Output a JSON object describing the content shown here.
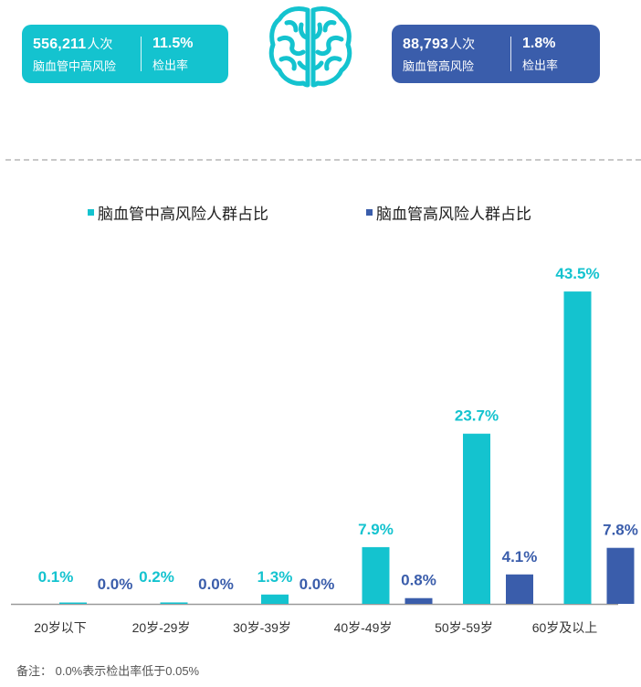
{
  "cards": {
    "left": {
      "count": "556,211",
      "unit": "人次",
      "label": "脑血管中高风险",
      "rate": "11.5%",
      "rate_label": "检出率",
      "color": "#14c3cf"
    },
    "right": {
      "count": "88,793",
      "unit": "人次",
      "label": "脑血管高风险",
      "rate": "1.8%",
      "rate_label": "检出率",
      "color": "#3a5dab"
    }
  },
  "icons": {
    "center": "brain-icon"
  },
  "footnote": "备注： 0.0%表示检出率低于0.05%",
  "chart_data": {
    "type": "bar",
    "categories": [
      "20岁以下",
      "20岁-29岁",
      "30岁-39岁",
      "40岁-49岁",
      "50岁-59岁",
      "60岁及以上"
    ],
    "series": [
      {
        "name": "脑血管中高风险人群占比",
        "color": "#14c3cf",
        "values": [
          0.1,
          0.2,
          1.3,
          7.9,
          23.7,
          43.5
        ],
        "labels": [
          "0.1%",
          "0.2%",
          "1.3%",
          "7.9%",
          "23.7%",
          "43.5%"
        ]
      },
      {
        "name": "脑血管高风险人群占比",
        "color": "#3a5dab",
        "values": [
          0.0,
          0.0,
          0.0,
          0.8,
          4.1,
          7.8
        ],
        "labels": [
          "0.0%",
          "0.0%",
          "0.0%",
          "0.8%",
          "4.1%",
          "7.8%"
        ]
      }
    ],
    "unit": "%",
    "legend": "top",
    "grid": false
  }
}
